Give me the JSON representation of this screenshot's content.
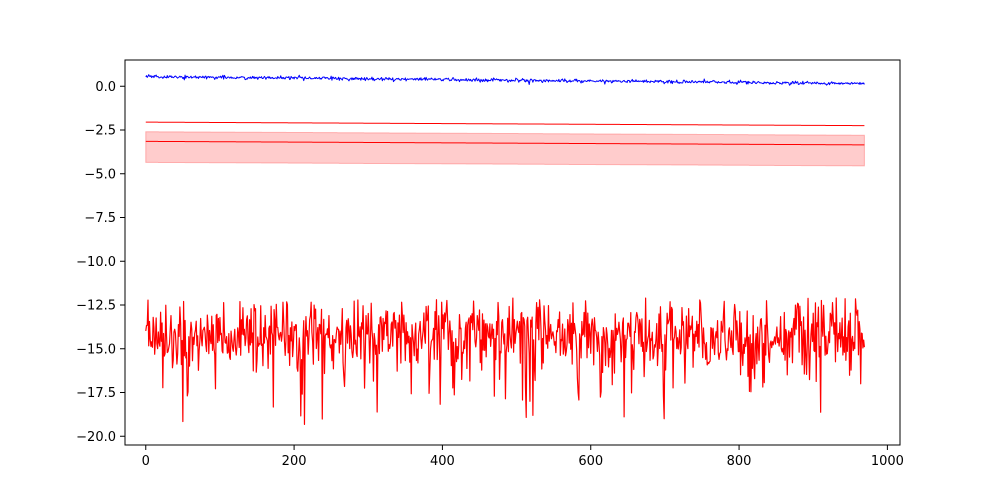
{
  "chart_data": {
    "type": "line",
    "title": "",
    "xlabel": "",
    "ylabel": "",
    "xlim": [
      -28,
      1017
    ],
    "ylim": [
      -20.5,
      1.5
    ],
    "grid": false,
    "legend": "none",
    "x_ticks": [
      0,
      200,
      400,
      600,
      800,
      1000
    ],
    "x_tick_labels": [
      "0",
      "200",
      "400",
      "600",
      "800",
      "1000"
    ],
    "y_ticks": [
      0.0,
      -2.5,
      -5.0,
      -7.5,
      -10.0,
      -12.5,
      -15.0,
      -17.5,
      -20.0
    ],
    "y_tick_labels": [
      "0.0",
      "−2.5",
      "−5.0",
      "−7.5",
      "−10.0",
      "−12.5",
      "−15.0",
      "−17.5",
      "−20.0"
    ],
    "n_points": 970,
    "series": [
      {
        "color": "#0000ff",
        "kind": "noisy-trend",
        "start": 0.55,
        "end": 0.15,
        "noise": 0.05
      },
      {
        "color": "#ff0000",
        "kind": "trend",
        "start": -2.05,
        "end": -2.25
      },
      {
        "color": "#ff0000",
        "kind": "trend",
        "start": -3.15,
        "end": -3.35
      },
      {
        "color": "#ff0000",
        "kind": "noisy",
        "center": -14.2,
        "min": -19.4,
        "max": -12.1
      }
    ],
    "band": {
      "color": "#ff0000",
      "opacity": 0.2,
      "upper_start": -2.6,
      "upper_end": -2.8,
      "lower_start": -4.35,
      "lower_end": -4.55
    }
  }
}
